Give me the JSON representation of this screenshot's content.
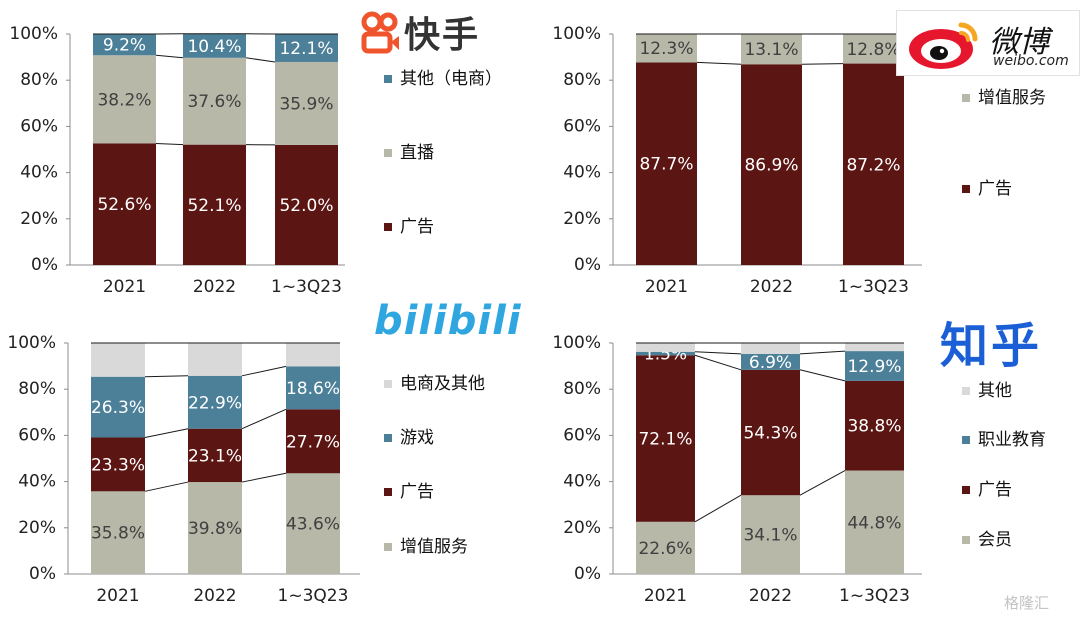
{
  "brands": {
    "kuaishou": "快手",
    "weibo": "微博",
    "weibo_url": "weibo.com",
    "bilibili": "bilibili",
    "zhihu": "知乎",
    "watermark": "格隆汇"
  },
  "colors": {
    "ad": "#5b1512",
    "live": "#b7b8a8",
    "other": "#4c7f98",
    "vas": "#b7b8a8",
    "ecom_other": "#d9d9d9",
    "game": "#4c7f98",
    "member": "#b7b8a8",
    "edu": "#4c7f98",
    "misc": "#d9d9d9",
    "label_light": "#ffffff",
    "label_dark": "#404040"
  },
  "chart_data": [
    {
      "type": "bar",
      "stacked": true,
      "brand": "快手",
      "categories": [
        "2021",
        "2022",
        "1~3Q23"
      ],
      "ylim": [
        0,
        100
      ],
      "ytick_labels": [
        "0%",
        "20%",
        "40%",
        "60%",
        "80%",
        "100%"
      ],
      "legend_position": "right",
      "series": [
        {
          "name": "广告",
          "color_key": "ad",
          "values": [
            52.6,
            52.1,
            52.0
          ],
          "labels": [
            "52.6%",
            "52.1%",
            "52.0%"
          ]
        },
        {
          "name": "直播",
          "color_key": "live",
          "values": [
            38.2,
            37.6,
            35.9
          ],
          "labels": [
            "38.2%",
            "37.6%",
            "35.9%"
          ]
        },
        {
          "name": "其他（电商）",
          "color_key": "other",
          "values": [
            9.2,
            10.4,
            12.1
          ],
          "labels": [
            "9.2%",
            "10.4%",
            "12.1%"
          ]
        }
      ],
      "legend_order": [
        2,
        1,
        0
      ]
    },
    {
      "type": "bar",
      "stacked": true,
      "brand": "微博",
      "categories": [
        "2021",
        "2022",
        "1~3Q23"
      ],
      "ylim": [
        0,
        100
      ],
      "ytick_labels": [
        "0%",
        "20%",
        "40%",
        "60%",
        "80%",
        "100%"
      ],
      "legend_position": "right",
      "series": [
        {
          "name": "广告",
          "color_key": "ad",
          "values": [
            87.7,
            86.9,
            87.2
          ],
          "labels": [
            "87.7%",
            "86.9%",
            "87.2%"
          ]
        },
        {
          "name": "增值服务",
          "color_key": "vas",
          "values": [
            12.3,
            13.1,
            12.8
          ],
          "labels": [
            "12.3%",
            "13.1%",
            "12.8%"
          ]
        }
      ],
      "legend_order": [
        1,
        0
      ]
    },
    {
      "type": "bar",
      "stacked": true,
      "brand": "bilibili",
      "categories": [
        "2021",
        "2022",
        "1~3Q23"
      ],
      "ylim": [
        0,
        100
      ],
      "ytick_labels": [
        "0%",
        "20%",
        "40%",
        "60%",
        "80%",
        "100%"
      ],
      "legend_position": "right",
      "series": [
        {
          "name": "增值服务",
          "color_key": "vas",
          "values": [
            35.8,
            39.8,
            43.6
          ],
          "labels": [
            "35.8%",
            "39.8%",
            "43.6%"
          ]
        },
        {
          "name": "广告",
          "color_key": "ad",
          "values": [
            23.3,
            23.1,
            27.7
          ],
          "labels": [
            "23.3%",
            "23.1%",
            "27.7%"
          ]
        },
        {
          "name": "游戏",
          "color_key": "game",
          "values": [
            26.3,
            22.9,
            18.6
          ],
          "labels": [
            "26.3%",
            "22.9%",
            "18.6%"
          ]
        },
        {
          "name": "电商及其他",
          "color_key": "ecom_other",
          "values": [
            14.6,
            14.2,
            10.1
          ],
          "labels": [
            "",
            "",
            ""
          ]
        }
      ],
      "legend_order": [
        3,
        2,
        1,
        0
      ]
    },
    {
      "type": "bar",
      "stacked": true,
      "brand": "知乎",
      "categories": [
        "2021",
        "2022",
        "1~3Q23"
      ],
      "ylim": [
        0,
        100
      ],
      "ytick_labels": [
        "0%",
        "20%",
        "40%",
        "60%",
        "80%",
        "100%"
      ],
      "legend_position": "right",
      "series": [
        {
          "name": "会员",
          "color_key": "member",
          "values": [
            22.6,
            34.1,
            44.8
          ],
          "labels": [
            "22.6%",
            "34.1%",
            "44.8%"
          ]
        },
        {
          "name": "广告",
          "color_key": "ad",
          "values": [
            72.1,
            54.3,
            38.8
          ],
          "labels": [
            "72.1%",
            "54.3%",
            "38.8%"
          ]
        },
        {
          "name": "职业教育",
          "color_key": "edu",
          "values": [
            1.5,
            6.9,
            12.9
          ],
          "labels": [
            "1.5%",
            "6.9%",
            "12.9%"
          ]
        },
        {
          "name": "其他",
          "color_key": "misc",
          "values": [
            3.8,
            4.7,
            3.5
          ],
          "labels": [
            "",
            "",
            ""
          ]
        }
      ],
      "legend_order": [
        3,
        2,
        1,
        0
      ]
    }
  ]
}
